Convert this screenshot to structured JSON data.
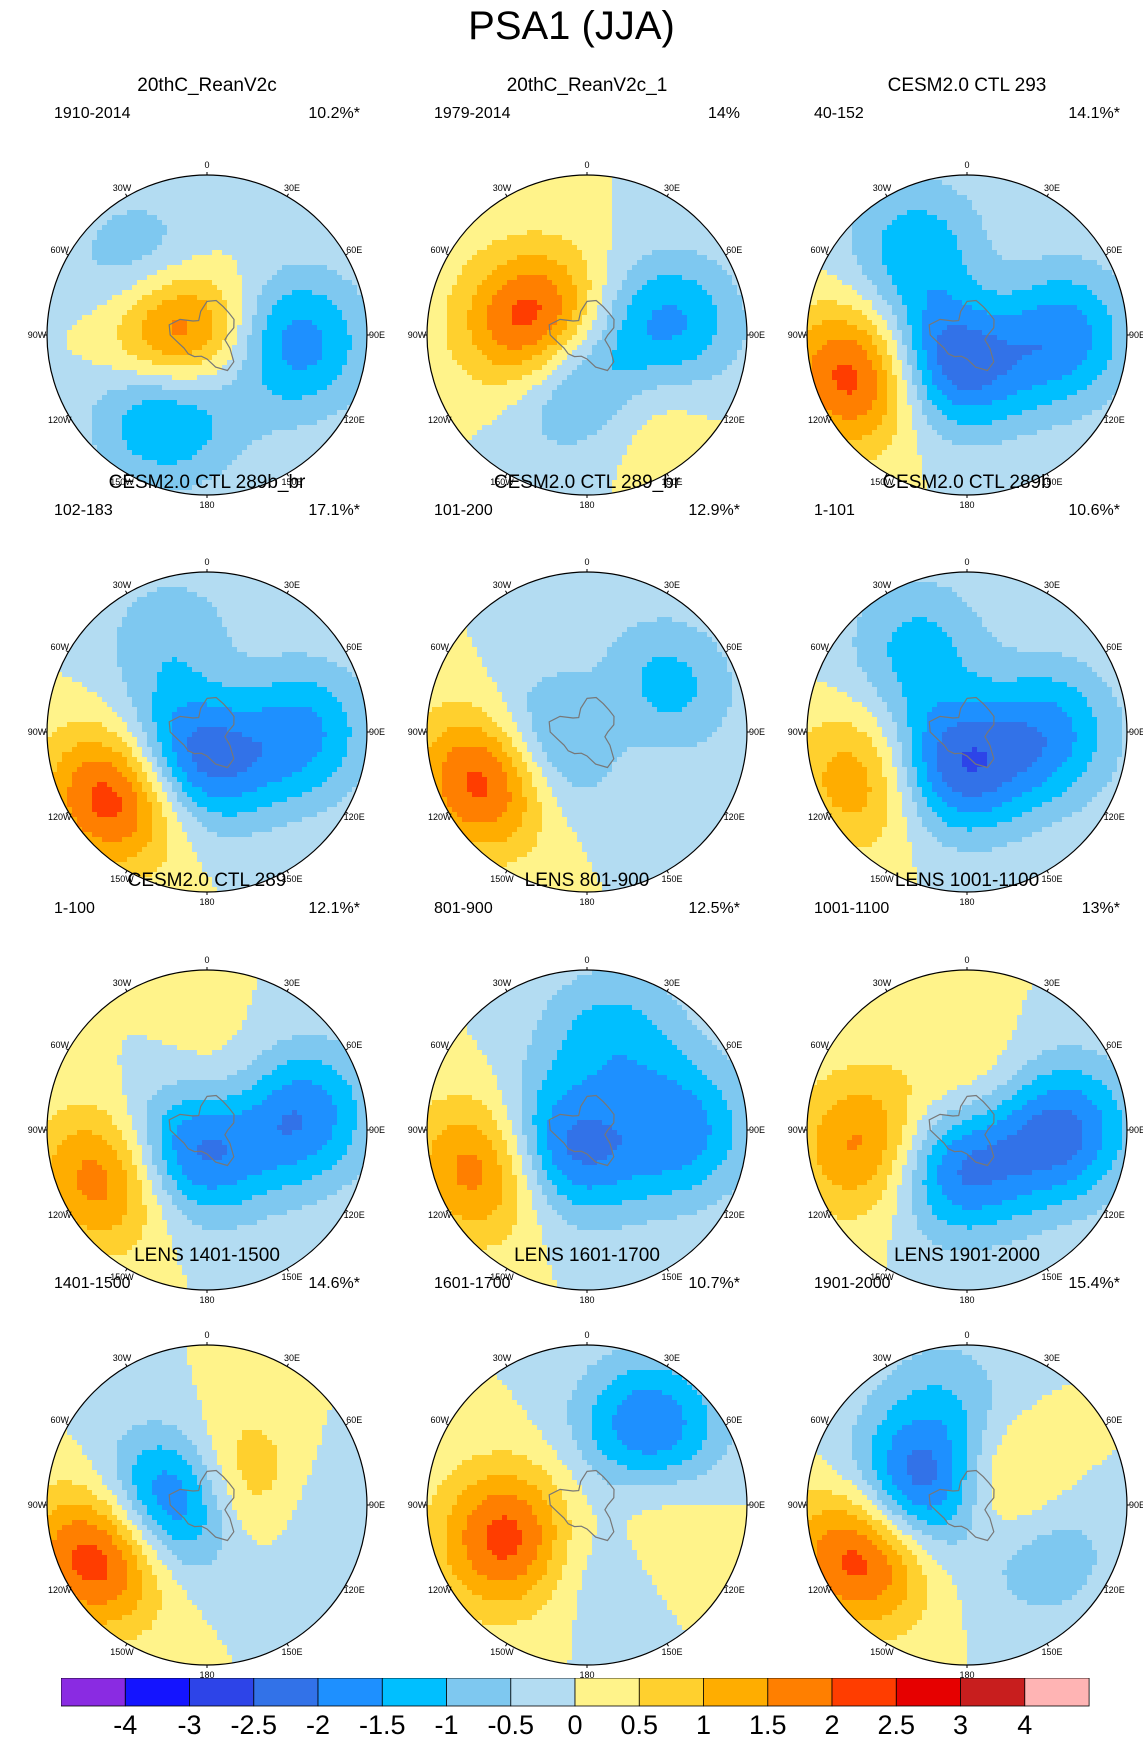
{
  "title": "PSA1 (JJA)",
  "lon_labels": [
    "0",
    "30E",
    "60E",
    "90E",
    "120E",
    "150E",
    "180",
    "150W",
    "120W",
    "90W",
    "60W",
    "30W"
  ],
  "chart_data": {
    "type": "heatmap",
    "projection": "south-polar-stereographic",
    "panels": [
      {
        "title": "20thC_ReanV2c",
        "period": "1910-2014",
        "variance": "10.2%*",
        "centers": [
          {
            "lon": -90,
            "r": 0.2,
            "v": 3
          },
          {
            "lon": -150,
            "r": 0.5,
            "v": -2.2
          },
          {
            "lon": 95,
            "r": 0.55,
            "v": -1.8
          },
          {
            "lon": -45,
            "r": 0.55,
            "v": -1.3
          }
        ]
      },
      {
        "title": "20thC_ReanV2c_1",
        "period": "1979-2014",
        "variance": "14%",
        "centers": [
          {
            "lon": -80,
            "r": 0.3,
            "v": 3
          },
          {
            "lon": -170,
            "r": 0.25,
            "v": -2.5
          },
          {
            "lon": 85,
            "r": 0.5,
            "v": -1.8
          },
          {
            "lon": 140,
            "r": 0.45,
            "v": 1.2
          }
        ]
      },
      {
        "title": "CESM2.0 CTL 293",
        "period": "40-152",
        "variance": "14.1%*",
        "centers": [
          {
            "lon": -140,
            "r": 0.15,
            "v": -3.6
          },
          {
            "lon": -110,
            "r": 0.7,
            "v": 2.6
          },
          {
            "lon": 90,
            "r": 0.55,
            "v": -2
          },
          {
            "lon": -30,
            "r": 0.6,
            "v": -1.4
          },
          {
            "lon": 40,
            "r": 0.1,
            "v": 1.6
          }
        ]
      },
      {
        "title": "CESM2.0 CTL 289b_br",
        "period": "102-183",
        "variance": "17.1%*",
        "centers": [
          {
            "lon": -145,
            "r": 0.15,
            "v": -3.6
          },
          {
            "lon": -125,
            "r": 0.65,
            "v": 2.8
          },
          {
            "lon": 90,
            "r": 0.55,
            "v": -1.8
          },
          {
            "lon": -20,
            "r": 0.6,
            "v": -0.9
          },
          {
            "lon": 40,
            "r": 0.1,
            "v": 1.4
          }
        ]
      },
      {
        "title": "CESM2.0 CTL 289_br",
        "period": "101-200",
        "variance": "12.9%*",
        "centers": [
          {
            "lon": -110,
            "r": 0.2,
            "v": -2.8
          },
          {
            "lon": -115,
            "r": 0.65,
            "v": 2.8
          },
          {
            "lon": 60,
            "r": 0.5,
            "v": -1.6
          },
          {
            "lon": 60,
            "r": 0.1,
            "v": 1.6
          }
        ]
      },
      {
        "title": "CESM2.0 CTL 289b",
        "period": "1-101",
        "variance": "10.6%*",
        "centers": [
          {
            "lon": -150,
            "r": 0.2,
            "v": -3.2
          },
          {
            "lon": -115,
            "r": 0.65,
            "v": 1.8
          },
          {
            "lon": 90,
            "r": 0.45,
            "v": -2
          },
          {
            "lon": -30,
            "r": 0.6,
            "v": -1.2
          },
          {
            "lon": 60,
            "r": 0.1,
            "v": 1.2
          }
        ]
      },
      {
        "title": "CESM2.0 CTL 289",
        "period": "1-100",
        "variance": "12.1%*",
        "centers": [
          {
            "lon": -130,
            "r": 0.15,
            "v": -3
          },
          {
            "lon": -115,
            "r": 0.65,
            "v": 2.2
          },
          {
            "lon": 80,
            "r": 0.55,
            "v": -2.2
          },
          {
            "lon": 30,
            "r": 0.2,
            "v": 1.3
          }
        ]
      },
      {
        "title": "LENS 801-900",
        "period": "801-900",
        "variance": "12.5%*",
        "centers": [
          {
            "lon": -120,
            "r": 0.15,
            "v": -3.2
          },
          {
            "lon": -110,
            "r": 0.65,
            "v": 2.2
          },
          {
            "lon": 90,
            "r": 0.55,
            "v": -1.9
          },
          {
            "lon": 15,
            "r": 0.55,
            "v": -1.5
          },
          {
            "lon": 30,
            "r": 0.15,
            "v": 1.4
          }
        ]
      },
      {
        "title": "LENS 1001-1100",
        "period": "1001-1100",
        "variance": "13%*",
        "centers": [
          {
            "lon": -155,
            "r": 0.2,
            "v": -2.8
          },
          {
            "lon": -100,
            "r": 0.6,
            "v": 2
          },
          {
            "lon": 90,
            "r": 0.55,
            "v": -2.4
          },
          {
            "lon": 30,
            "r": 0.15,
            "v": 1.3
          }
        ]
      },
      {
        "title": "LENS 1401-1500",
        "period": "1401-1500",
        "variance": "14.6%*",
        "centers": [
          {
            "lon": -90,
            "r": 0.2,
            "v": -3.4
          },
          {
            "lon": -115,
            "r": 0.7,
            "v": 2.8
          },
          {
            "lon": 60,
            "r": 0.2,
            "v": 2.2
          },
          {
            "lon": 90,
            "r": 0.55,
            "v": -0.8
          }
        ]
      },
      {
        "title": "LENS 1601-1700",
        "period": "1601-1700",
        "variance": "10.7%*",
        "centers": [
          {
            "lon": -115,
            "r": 0.5,
            "v": 2.6
          },
          {
            "lon": 40,
            "r": 0.6,
            "v": -2.2
          },
          {
            "lon": -170,
            "r": 0.25,
            "v": -1.2
          },
          {
            "lon": 90,
            "r": 0.35,
            "v": 1
          }
        ]
      },
      {
        "title": "LENS 1901-2000",
        "period": "1901-2000",
        "variance": "15.4%*",
        "centers": [
          {
            "lon": -70,
            "r": 0.25,
            "v": -3.4
          },
          {
            "lon": -115,
            "r": 0.7,
            "v": 2.6
          },
          {
            "lon": 60,
            "r": 0.15,
            "v": 2.2
          },
          {
            "lon": 120,
            "r": 0.5,
            "v": -1.2
          },
          {
            "lon": -10,
            "r": 0.65,
            "v": -0.8
          }
        ]
      }
    ],
    "colorbar": {
      "labels": [
        "-4",
        "-3",
        "-2.5",
        "-2",
        "-1.5",
        "-1",
        "-0.5",
        "0",
        "0.5",
        "1",
        "1.5",
        "2",
        "2.5",
        "3",
        "4"
      ],
      "levels": [
        -4,
        -3,
        -2.5,
        -2,
        -1.5,
        -1,
        -0.5,
        0,
        0.5,
        1,
        1.5,
        2,
        2.5,
        3,
        4
      ],
      "colors": [
        "#8a2be2",
        "#1414ff",
        "#2d44e8",
        "#3272e8",
        "#1e90ff",
        "#00bfff",
        "#7ec8f0",
        "#b3dcf2",
        "#fff38a",
        "#ffd02e",
        "#ffad00",
        "#ff7f00",
        "#ff3d00",
        "#e60000",
        "#c81e1e",
        "#ffb4b4"
      ]
    }
  }
}
